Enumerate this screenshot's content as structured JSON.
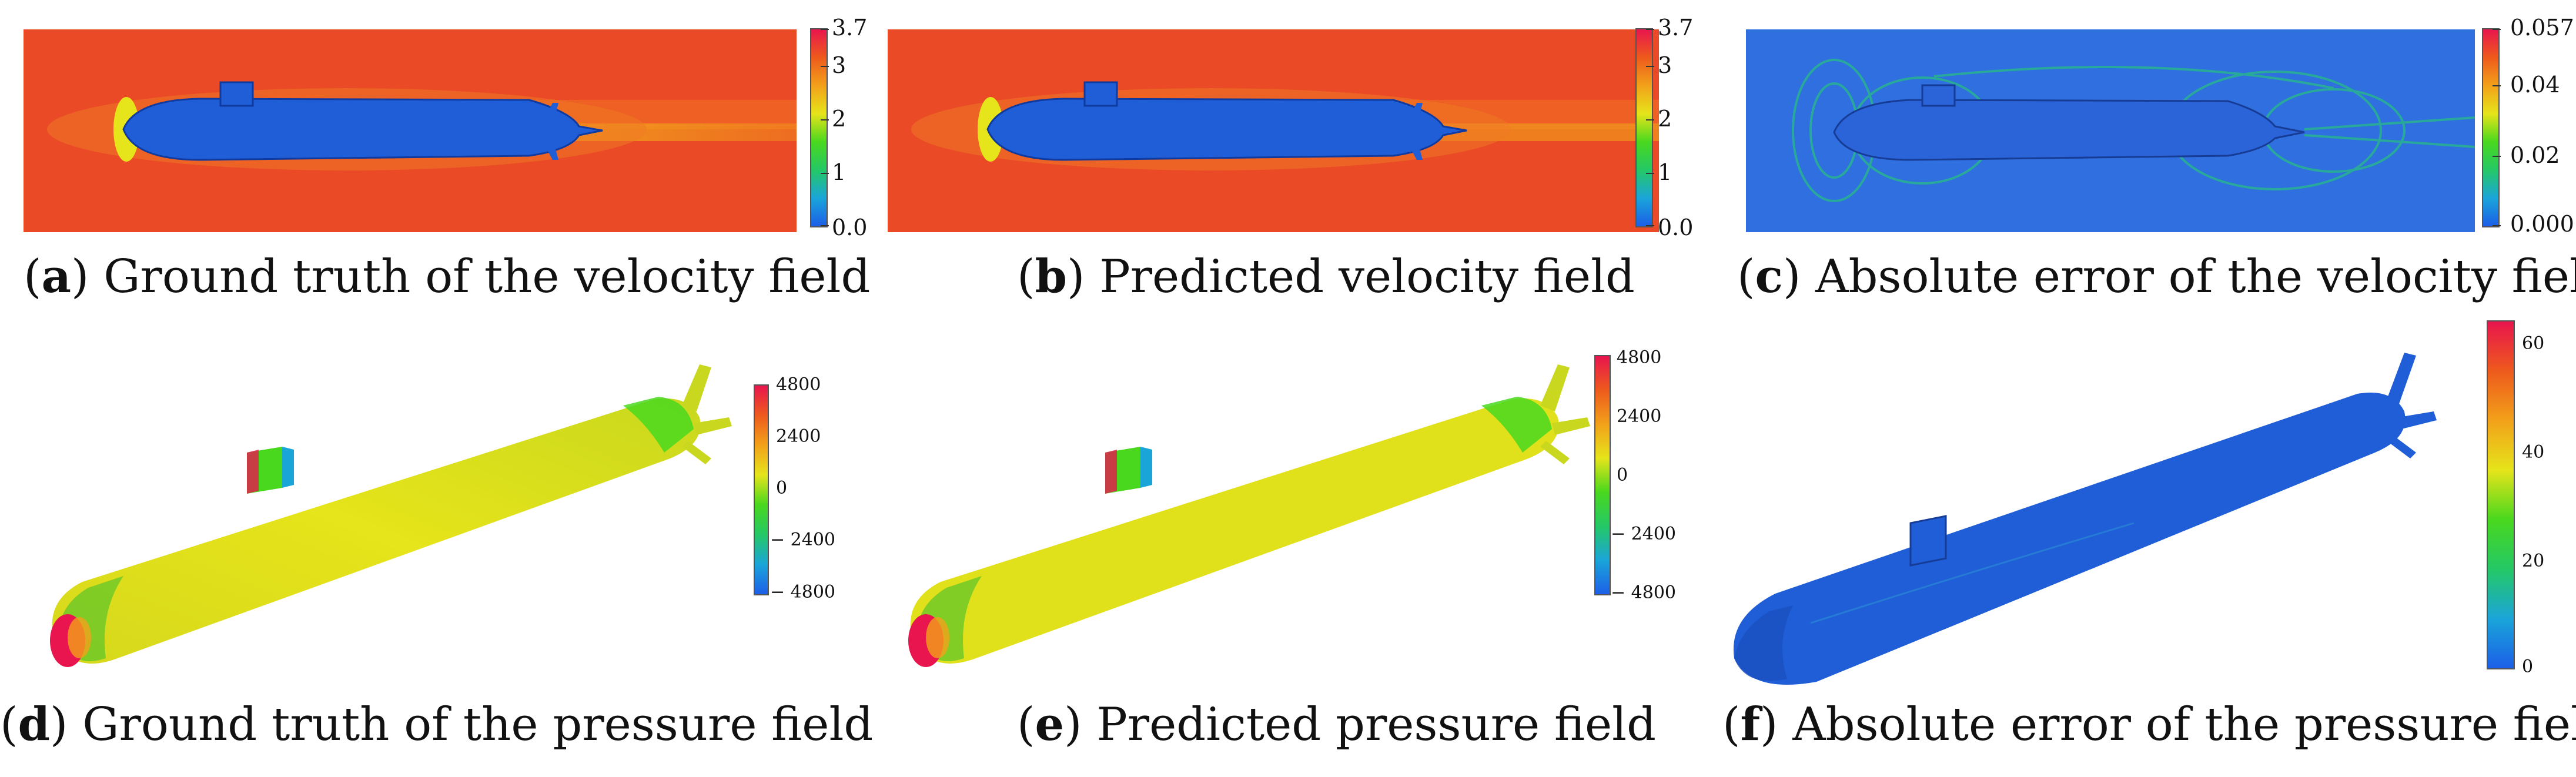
{
  "panels": {
    "a": {
      "letter": "a",
      "caption": "Ground truth of the velocity field",
      "ticks": [
        "3.7",
        "3",
        "2",
        "1",
        "0.0"
      ]
    },
    "b": {
      "letter": "b",
      "caption": "Predicted velocity field",
      "ticks": [
        "3.7",
        "3",
        "2",
        "1",
        "0.0"
      ]
    },
    "c": {
      "letter": "c",
      "caption": "Absolute error of the velocity field",
      "ticks": [
        "0.057",
        "0.04",
        "0.02",
        "0.000"
      ]
    },
    "d": {
      "letter": "d",
      "caption": "Ground truth of the pressure field",
      "ticks": [
        "4800",
        "2400",
        "0",
        "− 2400",
        "− 4800"
      ]
    },
    "e": {
      "letter": "e",
      "caption": "Predicted pressure field",
      "ticks": [
        "4800",
        "2400",
        "0",
        "− 2400",
        "− 4800"
      ]
    },
    "f": {
      "letter": "f",
      "caption": "Absolute error of the pressure field",
      "ticks": [
        "60",
        "40",
        "20",
        "0"
      ]
    }
  },
  "colors": {
    "rainbow": [
      "#1c5fe8",
      "#1aa5d9",
      "#24c866",
      "#49d81e",
      "#e6e41a",
      "#f2a11a",
      "#ee5a1c",
      "#e8154e"
    ],
    "background_red": "#ea4a26",
    "hull_blue": "#1f5ed6",
    "error_bg": "#2f6fe0"
  }
}
